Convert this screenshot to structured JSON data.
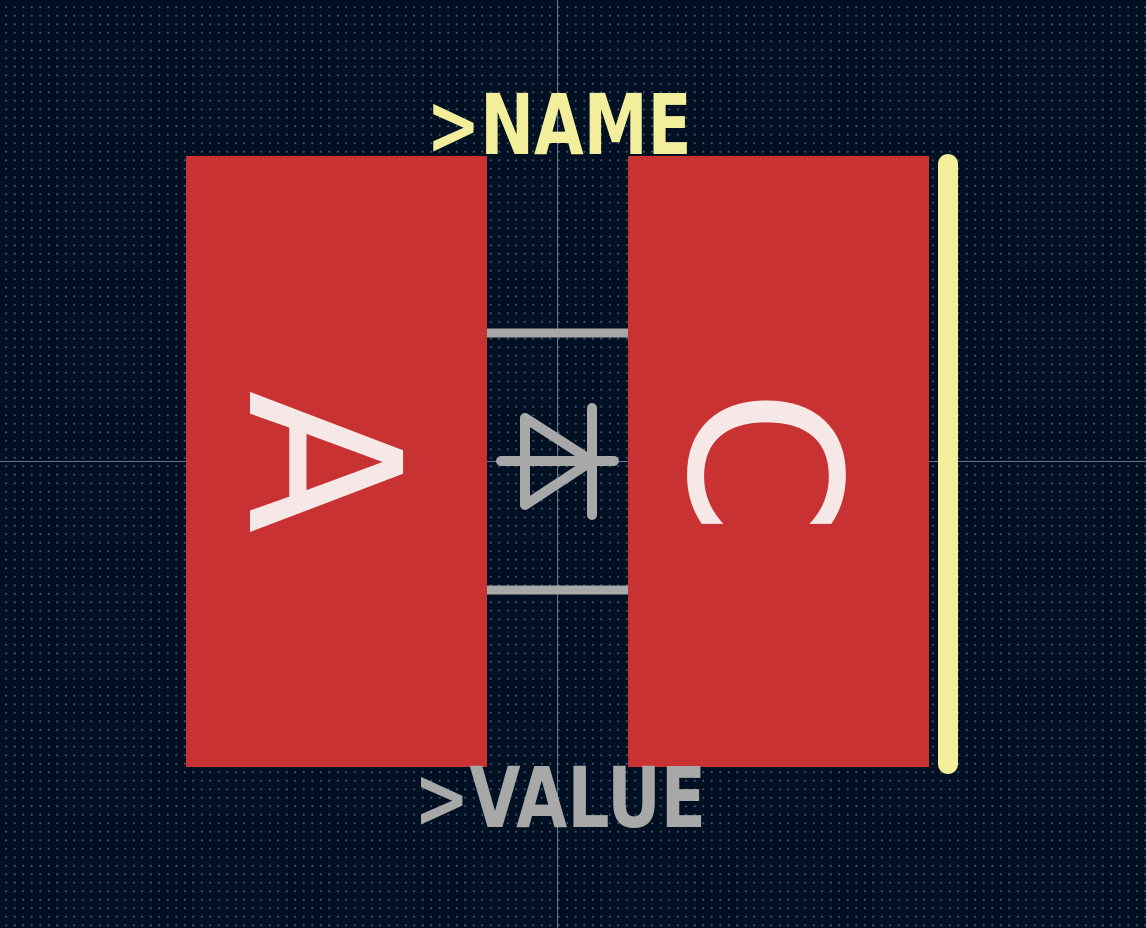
{
  "labels": {
    "name": ">NAME",
    "value": ">VALUE"
  },
  "pads": [
    {
      "id": "anode",
      "label": "A"
    },
    {
      "id": "cathode",
      "label": "C"
    }
  ],
  "colors": {
    "background": "#001023",
    "grid_dot": "#788ca0",
    "crosshair": "#8fa3b8",
    "pad": "#c83232",
    "pad_label": "#f7e8e8",
    "silkscreen": "#f2ee9c",
    "fab": "#a8a8a8"
  }
}
